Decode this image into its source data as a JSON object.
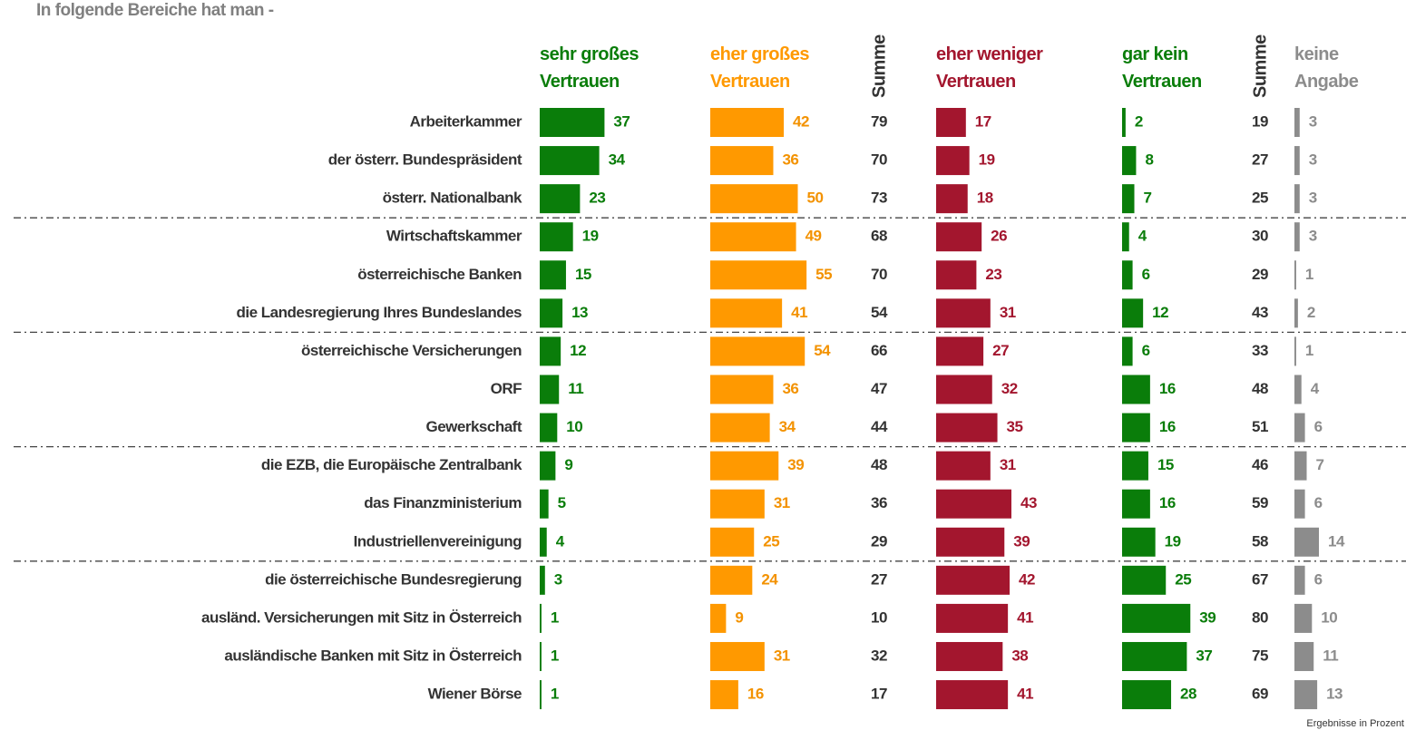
{
  "chart_data": {
    "type": "bar",
    "title": "In folgende Bereiche hat man -",
    "note": "Ergebnisse in Prozent",
    "categories": [
      "Arbeiterkammer",
      "der österr. Bundespräsident",
      "österr. Nationalbank",
      "Wirtschaftskammer",
      "österreichische Banken",
      "die Landesregierung Ihres Bundeslandes",
      "österreichische Versicherungen",
      "ORF",
      "Gewerkschaft",
      "die EZB, die Europäische Zentralbank",
      "das Finanzministerium",
      "Industriellenvereinigung",
      "die österreichische Bundesregierung",
      "ausländ. Versicherungen mit Sitz in Österreich",
      "ausländische Banken mit Sitz in Österreich",
      "Wiener Börse"
    ],
    "series": [
      {
        "name": "sehr großes Vertrauen",
        "color": "#0a7d0a",
        "values": [
          37,
          34,
          23,
          19,
          15,
          13,
          12,
          11,
          10,
          9,
          5,
          4,
          3,
          1,
          1,
          1
        ]
      },
      {
        "name": "eher großes Vertrauen",
        "color": "#ff9900",
        "values": [
          42,
          36,
          50,
          49,
          55,
          41,
          54,
          36,
          34,
          39,
          31,
          25,
          24,
          9,
          31,
          16
        ]
      },
      {
        "name": "Summe",
        "values": [
          79,
          70,
          73,
          68,
          70,
          54,
          66,
          47,
          44,
          48,
          36,
          29,
          27,
          10,
          32,
          17
        ]
      },
      {
        "name": "eher weniger Vertrauen",
        "color": "#a3162e",
        "values": [
          17,
          19,
          18,
          26,
          23,
          31,
          27,
          32,
          35,
          31,
          43,
          39,
          42,
          41,
          38,
          41
        ]
      },
      {
        "name": "gar kein Vertrauen",
        "color": "#0a7d0a",
        "values": [
          2,
          8,
          7,
          4,
          6,
          12,
          6,
          16,
          16,
          15,
          16,
          19,
          25,
          39,
          37,
          28
        ]
      },
      {
        "name": "Summe",
        "values": [
          19,
          27,
          25,
          30,
          29,
          43,
          33,
          48,
          51,
          46,
          59,
          58,
          67,
          80,
          75,
          69
        ]
      },
      {
        "name": "keine Angabe",
        "color": "#8c8c8c",
        "values": [
          3,
          3,
          3,
          3,
          1,
          2,
          1,
          4,
          6,
          7,
          6,
          14,
          6,
          10,
          11,
          13
        ]
      }
    ]
  }
}
